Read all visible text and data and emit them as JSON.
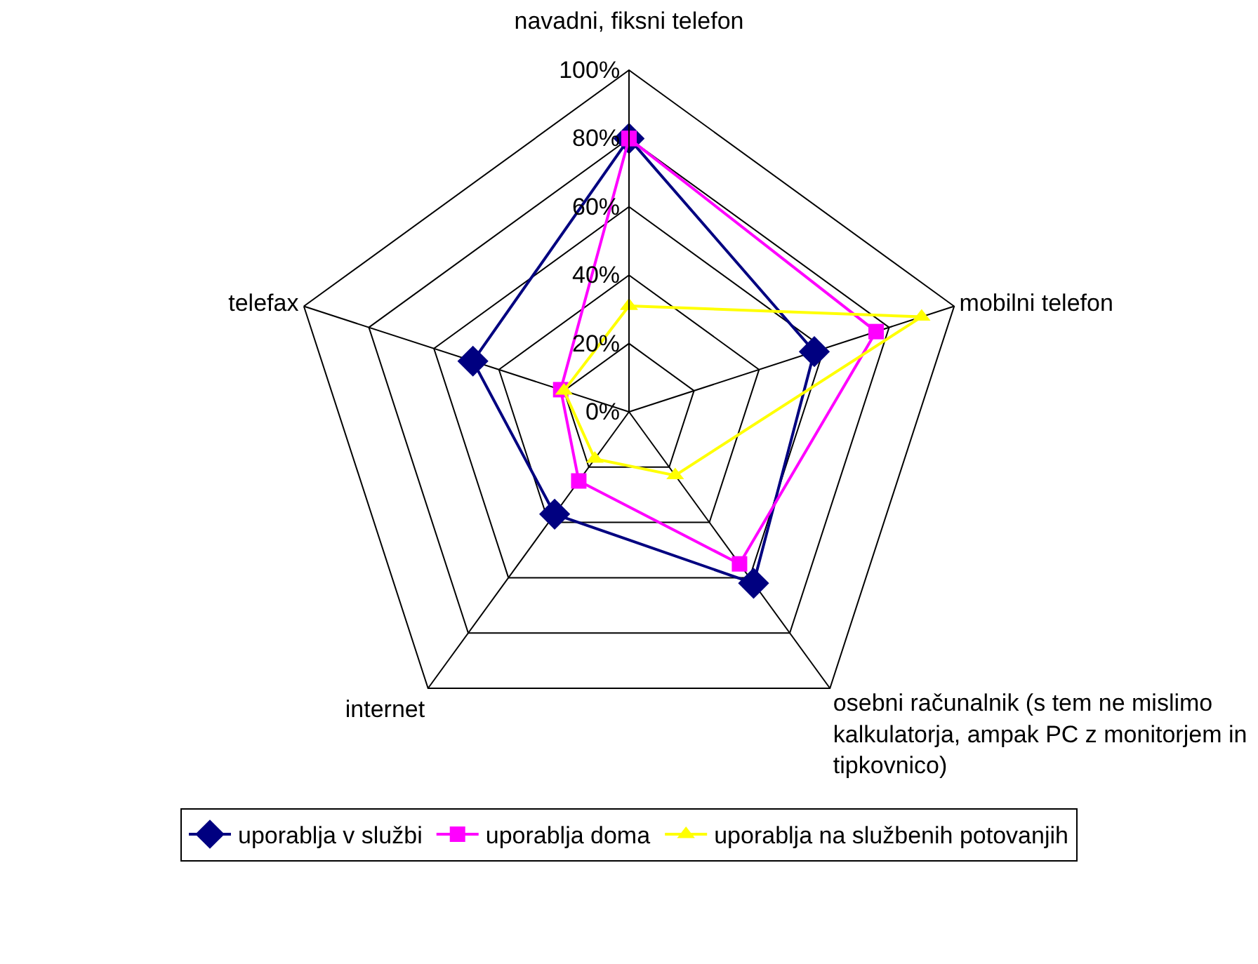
{
  "chart_data": {
    "type": "radar",
    "categories": [
      "navadni, fiksni telefon",
      "mobilni telefon",
      "osebni računalnik (s tem ne mislimo kalkulatorja, ampak PC z monitorjem in tipkovnico)",
      "internet",
      "telefax"
    ],
    "series": [
      {
        "name": "uporablja v službi",
        "color": "#000080",
        "marker": "diamond",
        "values": [
          80,
          57,
          62,
          37,
          48
        ]
      },
      {
        "name": "uporablja doma",
        "color": "#ff00ff",
        "marker": "square",
        "values": [
          80,
          76,
          55,
          25,
          21
        ]
      },
      {
        "name": "uporablja na službenih potovanjih",
        "color": "#ffff00",
        "marker": "triangle",
        "values": [
          31,
          90,
          23,
          17,
          20
        ]
      }
    ],
    "ylim": [
      0,
      100
    ],
    "yticks": [
      {
        "value": 0,
        "label": "0%"
      },
      {
        "value": 20,
        "label": "20%"
      },
      {
        "value": 40,
        "label": "40%"
      },
      {
        "value": 60,
        "label": "60%"
      },
      {
        "value": 80,
        "label": "80%"
      },
      {
        "value": 100,
        "label": "100%"
      }
    ],
    "grid": true,
    "legend": "bottom",
    "line_style": "solid"
  }
}
